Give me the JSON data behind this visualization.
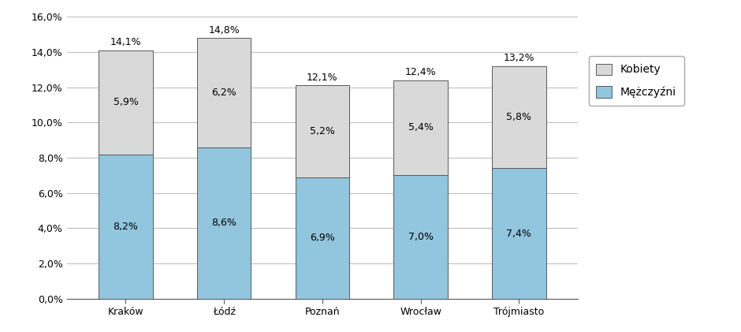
{
  "categories": [
    "Kraków",
    "Łódź",
    "Poznań",
    "Wrocław",
    "Trójmiasto"
  ],
  "men_values": [
    8.2,
    8.6,
    6.9,
    7.0,
    7.4
  ],
  "women_values": [
    5.9,
    6.2,
    5.2,
    5.4,
    5.8
  ],
  "total_labels": [
    "14,1%",
    "14,8%",
    "12,1%",
    "12,4%",
    "13,2%"
  ],
  "men_labels": [
    "8,2%",
    "8,6%",
    "6,9%",
    "7,0%",
    "7,4%"
  ],
  "women_labels": [
    "5,9%",
    "6,2%",
    "5,2%",
    "5,4%",
    "5,8%"
  ],
  "men_color": "#92C5DE",
  "women_color": "#D9D9D9",
  "bar_edge_color": "#595959",
  "ylim": [
    0,
    16
  ],
  "yticks": [
    0,
    2,
    4,
    6,
    8,
    10,
    12,
    14,
    16
  ],
  "ytick_labels": [
    "0,0%",
    "2,0%",
    "4,0%",
    "6,0%",
    "8,0%",
    "10,0%",
    "12,0%",
    "14,0%",
    "16,0%"
  ],
  "legend_kobiety": "Kobiety",
  "legend_mezczyzni": "Mężczyźni",
  "bar_width": 0.55,
  "figsize": [
    9.4,
    4.21
  ],
  "dpi": 100,
  "background_color": "#ffffff",
  "grid_color": "#bfbfbf",
  "font_size_labels": 9,
  "font_size_ticks": 9,
  "font_size_legend": 10
}
